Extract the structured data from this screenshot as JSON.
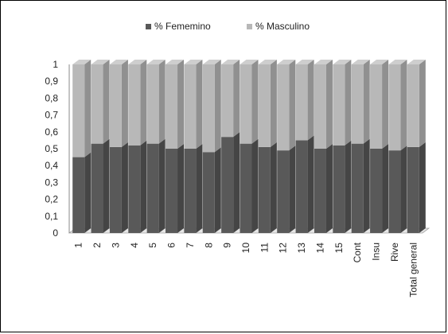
{
  "chart_data": {
    "type": "bar",
    "stacked": true,
    "three_d": true,
    "categories": [
      "1",
      "2",
      "3",
      "4",
      "5",
      "6",
      "7",
      "8",
      "9",
      "10",
      "11",
      "12",
      "13",
      "14",
      "15",
      "Cont",
      "Insu",
      "Rive",
      "Total general"
    ],
    "series": [
      {
        "name": "% Fememino",
        "color": "#595959",
        "values": [
          0.45,
          0.53,
          0.51,
          0.52,
          0.53,
          0.5,
          0.5,
          0.48,
          0.57,
          0.53,
          0.51,
          0.49,
          0.55,
          0.5,
          0.52,
          0.53,
          0.5,
          0.49,
          0.51
        ]
      },
      {
        "name": "% Masculino",
        "color": "#b8b8b8",
        "values": [
          0.55,
          0.47,
          0.49,
          0.48,
          0.47,
          0.5,
          0.5,
          0.52,
          0.43,
          0.47,
          0.49,
          0.51,
          0.45,
          0.5,
          0.48,
          0.47,
          0.5,
          0.51,
          0.49
        ]
      }
    ],
    "yticks": [
      "0",
      "0,1",
      "0,2",
      "0,3",
      "0,4",
      "0,5",
      "0,6",
      "0,7",
      "0,8",
      "0,9",
      "1"
    ],
    "ylim": [
      0,
      1
    ],
    "grid": false,
    "legend_position": "top"
  }
}
